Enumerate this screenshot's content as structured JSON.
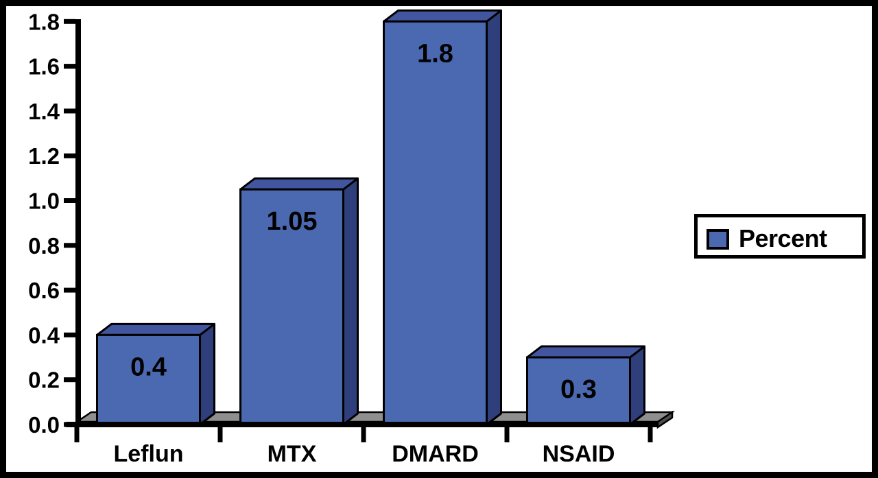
{
  "chart_data": {
    "type": "bar",
    "style": "3d",
    "title": "",
    "xlabel": "",
    "ylabel": "",
    "categories": [
      "Leflun",
      "MTX",
      "DMARD",
      "NSAID"
    ],
    "values": [
      0.4,
      1.05,
      1.8,
      0.3
    ],
    "value_labels": [
      "0.4",
      "1.05",
      "1.8",
      "0.3"
    ],
    "series": [
      {
        "name": "Percent",
        "values": [
          0.4,
          1.05,
          1.8,
          0.3
        ]
      }
    ],
    "ylim": [
      0.0,
      1.8
    ],
    "ytick_step": 0.2,
    "ytick_labels": [
      "0.0",
      "0.2",
      "0.4",
      "0.6",
      "0.8",
      "1.0",
      "1.2",
      "1.4",
      "1.6",
      "1.8"
    ],
    "grid": false,
    "legend": {
      "position": "right",
      "label": "Percent"
    },
    "colors": {
      "bar_front": "#4a69b1",
      "bar_top": "#42569f",
      "bar_side": "#2e3f7c",
      "floor": "#8f8f8f",
      "floor_edge": "#4d4d4d",
      "outline": "#000000",
      "axis": "#000000",
      "background": "#ffffff",
      "border": "#000000"
    }
  }
}
